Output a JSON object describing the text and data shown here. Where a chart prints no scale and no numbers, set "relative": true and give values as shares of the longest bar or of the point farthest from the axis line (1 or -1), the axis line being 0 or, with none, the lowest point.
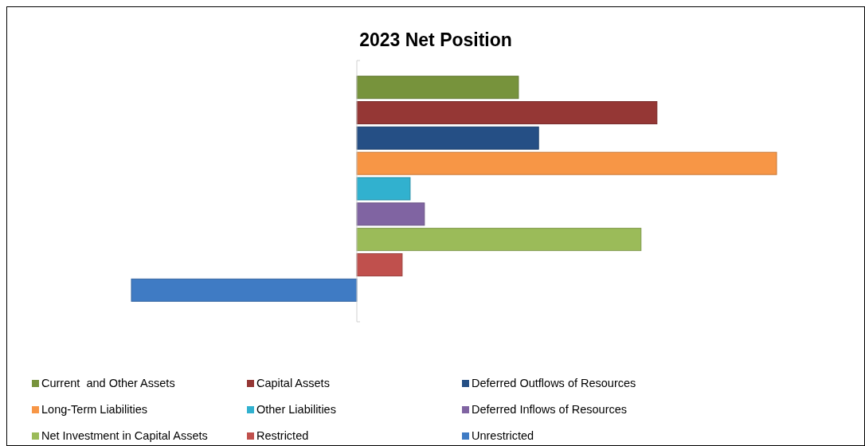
{
  "chart_data": {
    "type": "bar",
    "orientation": "horizontal",
    "relative": true,
    "title": "2023 Net Position",
    "categories": [
      null
    ],
    "legend": "bottom",
    "series": [
      {
        "name": "Current  and Other Assets",
        "color": "#77933c",
        "values": [
          0.385
        ]
      },
      {
        "name": "Capital Assets",
        "color": "#953735",
        "values": [
          0.715
        ]
      },
      {
        "name": "Deferred Outflows of Resources",
        "color": "#254f85",
        "values": [
          0.433
        ]
      },
      {
        "name": "Long-Term Liabilities",
        "color": "#f79646",
        "values": [
          1
        ]
      },
      {
        "name": "Other Liabilities",
        "color": "#31b1cf",
        "values": [
          0.127
        ]
      },
      {
        "name": "Deferred Inflows of Resources",
        "color": "#8064a2",
        "values": [
          0.161
        ]
      },
      {
        "name": "Net Investment in Capital Assets",
        "color": "#9bbb59",
        "values": [
          0.677
        ]
      },
      {
        "name": "Restricted",
        "color": "#c0504d",
        "values": [
          0.108
        ]
      },
      {
        "name": "Unrestricted",
        "color": "#3f7bc4",
        "values": [
          -0.537
        ]
      }
    ]
  }
}
